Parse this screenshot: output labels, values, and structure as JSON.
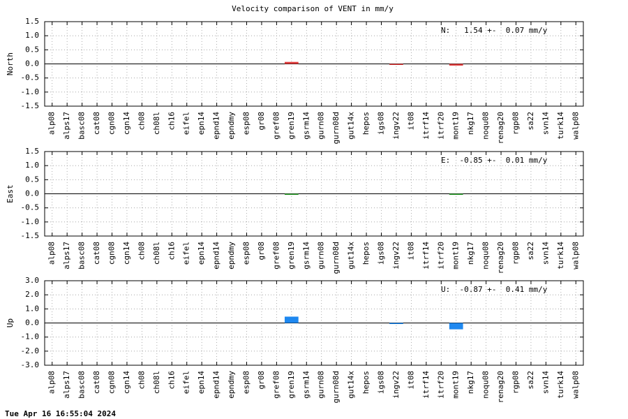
{
  "title": "Velocity comparison of VENT in mm/y",
  "footer": "Tue Apr 16 16:55:04 2024",
  "chart_data": [
    {
      "type": "bar",
      "ylabel": "North",
      "annotation": "N:   1.54 +-  0.07 mm/y",
      "color": "#e03a3a",
      "grid": true,
      "categories": [
        "alp08",
        "alps17",
        "basc08",
        "cat08",
        "cgn08",
        "cgn14",
        "ch08",
        "ch08l",
        "ch16",
        "eifel",
        "epn14",
        "epnd14",
        "epndmy",
        "esp08",
        "gr08",
        "gref08",
        "gren19",
        "gsrm14",
        "gurn08",
        "gurn08d",
        "gut14x",
        "hepos",
        "igs08",
        "ingv22",
        "it08",
        "itrf14",
        "itrf20",
        "mont19",
        "nkg17",
        "noqu08",
        "renag20",
        "rgp08",
        "sa22",
        "svn14",
        "turk14",
        "walp08"
      ],
      "values": [
        null,
        null,
        null,
        null,
        null,
        null,
        null,
        null,
        null,
        null,
        null,
        null,
        null,
        null,
        null,
        null,
        0.07,
        null,
        null,
        null,
        null,
        null,
        null,
        -0.03,
        null,
        null,
        null,
        -0.06,
        null,
        null,
        null,
        null,
        null,
        null,
        null,
        null
      ],
      "ylim": [
        -1.5,
        1.5
      ],
      "yticks": [
        -1.5,
        {
          "value": -1,
          "label": "-1.0"
        },
        -0.5,
        {
          "value": 0,
          "label": "0.0"
        },
        0.5,
        {
          "value": 1,
          "label": "1.0"
        },
        1.5
      ]
    },
    {
      "type": "bar",
      "ylabel": "East",
      "annotation": "E:  -0.85 +-  0.01 mm/y",
      "color": "#2ca02c",
      "grid": true,
      "categories": [
        "alp08",
        "alps17",
        "basc08",
        "cat08",
        "cgn08",
        "cgn14",
        "ch08",
        "ch08l",
        "ch16",
        "eifel",
        "epn14",
        "epnd14",
        "epndmy",
        "esp08",
        "gr08",
        "gref08",
        "gren19",
        "gsrm14",
        "gurn08",
        "gurn08d",
        "gut14x",
        "hepos",
        "igs08",
        "ingv22",
        "it08",
        "itrf14",
        "itrf20",
        "mont19",
        "nkg17",
        "noqu08",
        "renag20",
        "rgp08",
        "sa22",
        "svn14",
        "turk14",
        "walp08"
      ],
      "values": [
        null,
        null,
        null,
        null,
        null,
        null,
        null,
        null,
        null,
        null,
        null,
        null,
        null,
        null,
        null,
        null,
        -0.02,
        null,
        null,
        null,
        null,
        null,
        null,
        null,
        null,
        null,
        null,
        -0.02,
        null,
        null,
        null,
        null,
        null,
        null,
        null,
        null
      ],
      "ylim": [
        -1.5,
        1.5
      ],
      "yticks": [
        -1.5,
        {
          "value": -1,
          "label": "-1.0"
        },
        -0.5,
        {
          "value": 0,
          "label": "0.0"
        },
        0.5,
        {
          "value": 1,
          "label": "1.0"
        },
        1.5
      ]
    },
    {
      "type": "bar",
      "ylabel": "Up",
      "annotation": "U:  -0.87 +-  0.41 mm/y",
      "color": "#1e88f0",
      "grid": true,
      "categories": [
        "alp08",
        "alps17",
        "basc08",
        "cat08",
        "cgn08",
        "cgn14",
        "ch08",
        "ch08l",
        "ch16",
        "eifel",
        "epn14",
        "epnd14",
        "epndmy",
        "esp08",
        "gr08",
        "gref08",
        "gren19",
        "gsrm14",
        "gurn08",
        "gurn08d",
        "gut14x",
        "hepos",
        "igs08",
        "ingv22",
        "it08",
        "itrf14",
        "itrf20",
        "mont19",
        "nkg17",
        "noqu08",
        "renag20",
        "rgp08",
        "sa22",
        "svn14",
        "turk14",
        "walp08"
      ],
      "values": [
        null,
        null,
        null,
        null,
        null,
        null,
        null,
        null,
        null,
        null,
        null,
        null,
        null,
        null,
        null,
        null,
        0.45,
        null,
        null,
        null,
        null,
        null,
        null,
        -0.05,
        null,
        null,
        null,
        -0.45,
        null,
        null,
        null,
        null,
        null,
        null,
        null,
        null
      ],
      "ylim": [
        -3,
        3
      ],
      "yticks": [
        {
          "value": -3,
          "label": "-3.0"
        },
        {
          "value": -2,
          "label": "-2.0"
        },
        {
          "value": -1,
          "label": "-1.0"
        },
        {
          "value": 0,
          "label": "0.0"
        },
        {
          "value": 1,
          "label": "1.0"
        },
        {
          "value": 2,
          "label": "2.0"
        },
        {
          "value": 3,
          "label": "3.0"
        }
      ]
    }
  ]
}
